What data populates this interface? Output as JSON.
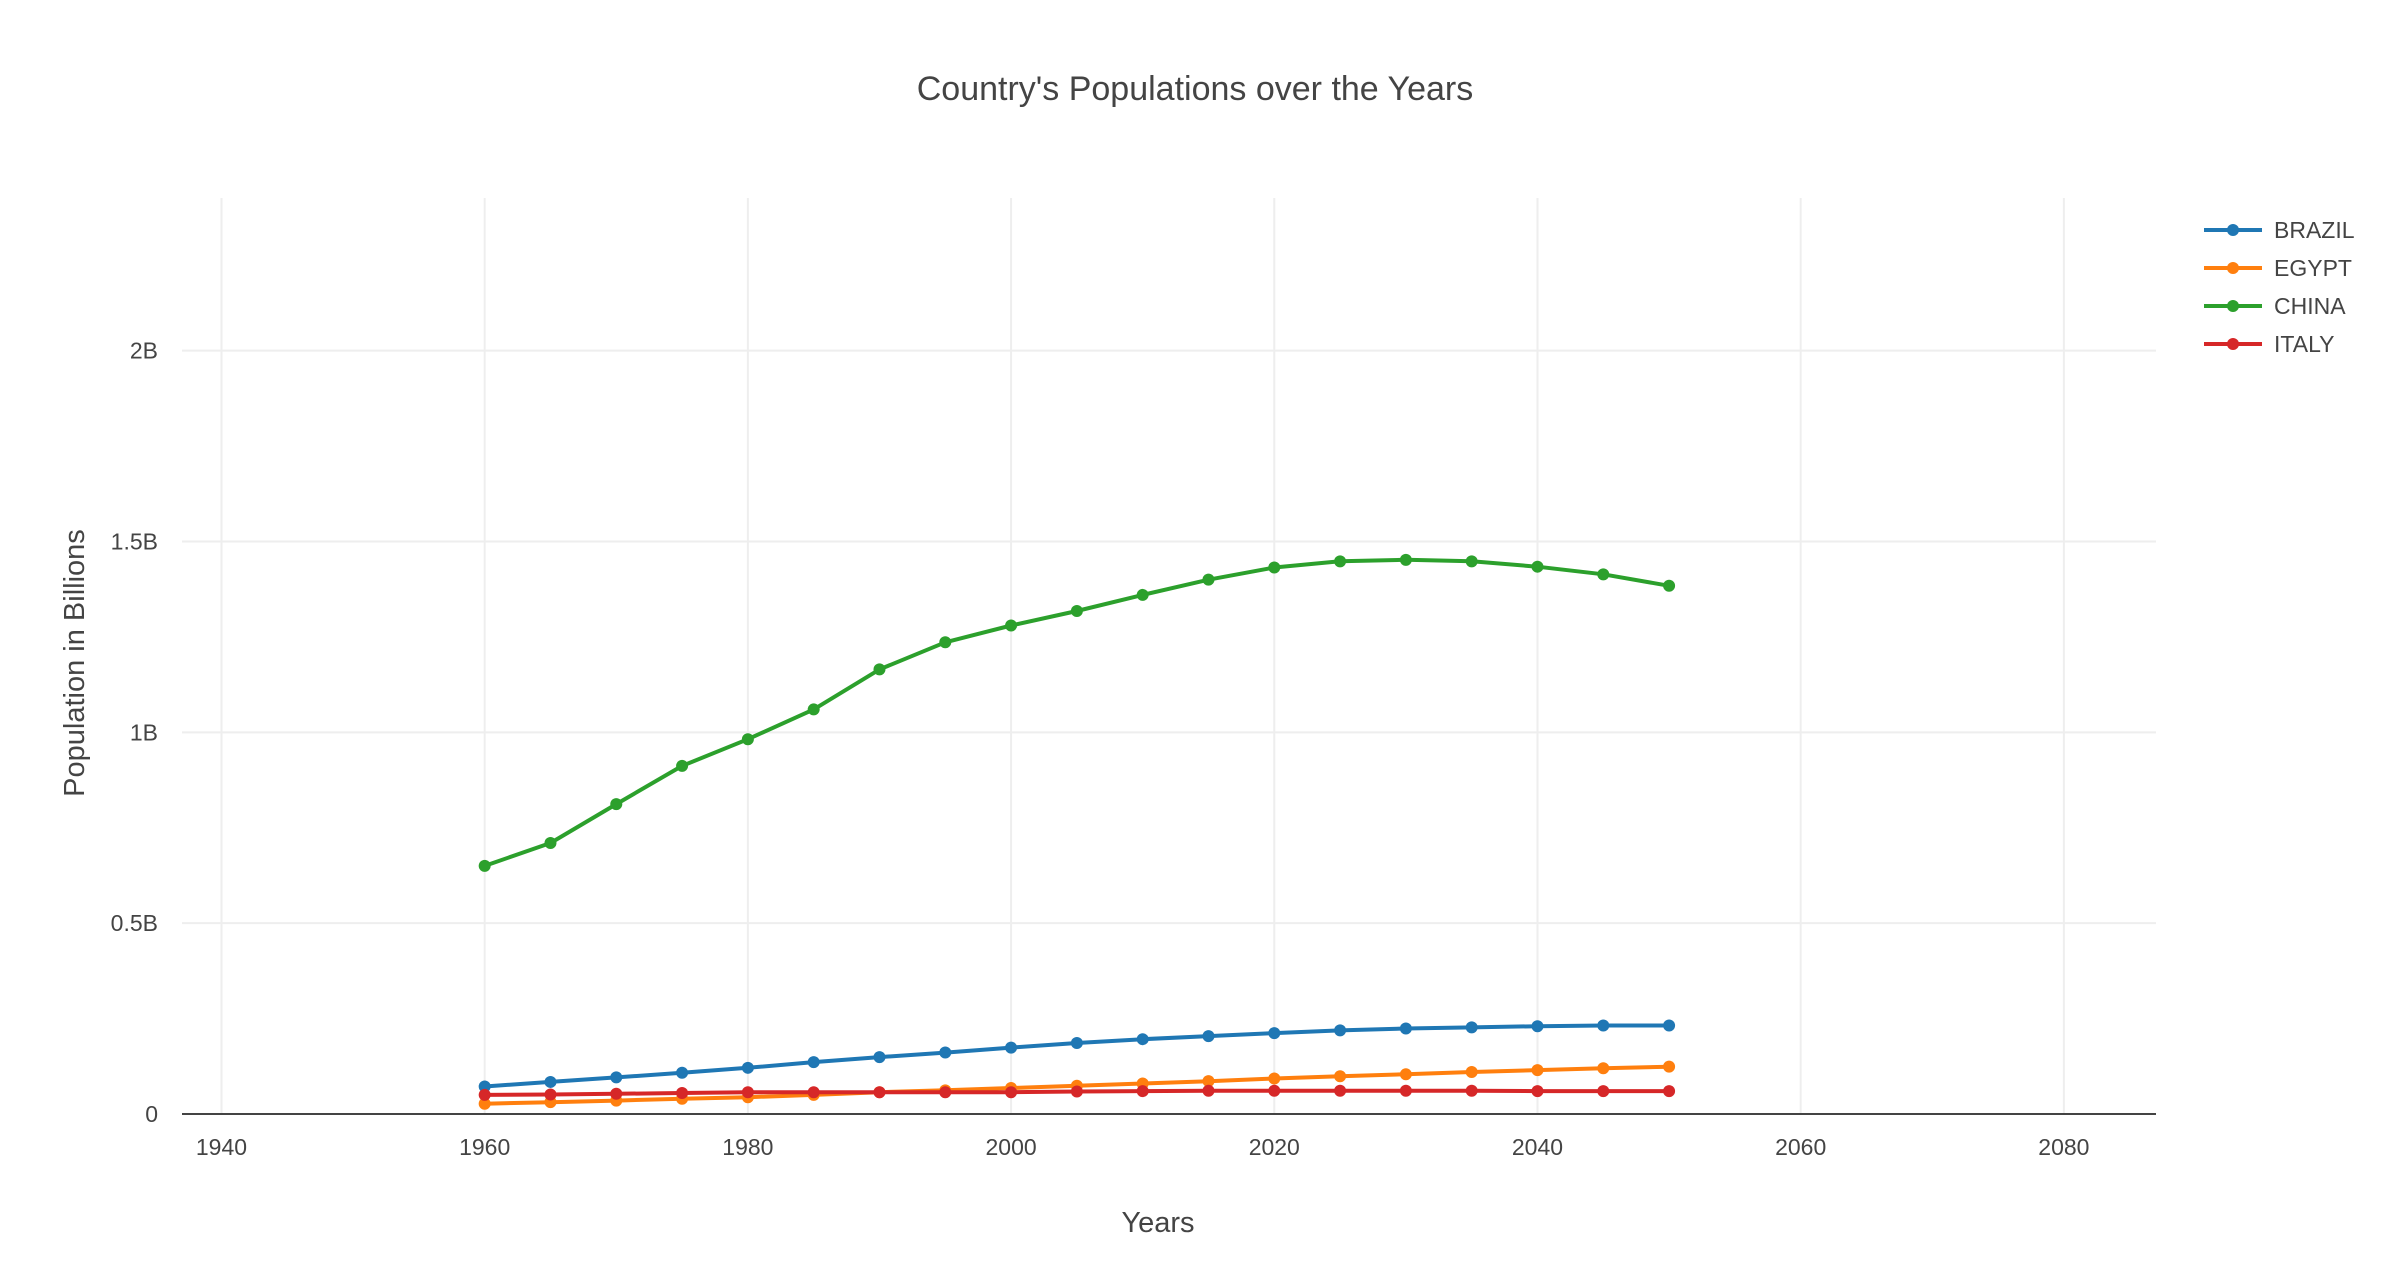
{
  "chart_data": {
    "type": "line",
    "title": "Country's Populations over the Years",
    "xlabel": "Years",
    "ylabel": "Population in Billions",
    "xlim": [
      1937,
      2087
    ],
    "ylim": [
      0,
      2.4
    ],
    "x_ticks": [
      1940,
      1960,
      1980,
      2000,
      2020,
      2040,
      2060,
      2080
    ],
    "x_tick_labels": [
      "1940",
      "1960",
      "1980",
      "2000",
      "2020",
      "2040",
      "2060",
      "2080"
    ],
    "y_ticks": [
      0,
      0.5,
      1,
      1.5,
      2
    ],
    "y_tick_labels": [
      "0",
      "0.5B",
      "1B",
      "1.5B",
      "2B"
    ],
    "grid": true,
    "legend_position": "top-right",
    "x": [
      1960,
      1965,
      1970,
      1975,
      1980,
      1985,
      1990,
      1995,
      2000,
      2005,
      2010,
      2015,
      2020,
      2025,
      2030,
      2035,
      2040,
      2045,
      2050
    ],
    "series": [
      {
        "name": "BRAZIL",
        "color": "#1f77b4",
        "values": [
          0.072,
          0.084,
          0.096,
          0.108,
          0.121,
          0.136,
          0.149,
          0.161,
          0.174,
          0.186,
          0.196,
          0.204,
          0.212,
          0.219,
          0.224,
          0.227,
          0.23,
          0.232,
          0.232
        ]
      },
      {
        "name": "EGYPT",
        "color": "#ff7f0e",
        "values": [
          0.027,
          0.031,
          0.035,
          0.04,
          0.044,
          0.05,
          0.057,
          0.062,
          0.068,
          0.074,
          0.08,
          0.086,
          0.093,
          0.099,
          0.104,
          0.11,
          0.115,
          0.12,
          0.124
        ]
      },
      {
        "name": "CHINA",
        "color": "#2ca02c",
        "values": [
          0.65,
          0.71,
          0.812,
          0.912,
          0.982,
          1.06,
          1.165,
          1.236,
          1.28,
          1.318,
          1.36,
          1.4,
          1.432,
          1.448,
          1.452,
          1.448,
          1.434,
          1.414,
          1.384
        ]
      },
      {
        "name": "ITALY",
        "color": "#d62728",
        "values": [
          0.05,
          0.051,
          0.053,
          0.055,
          0.057,
          0.057,
          0.057,
          0.057,
          0.057,
          0.059,
          0.06,
          0.061,
          0.061,
          0.061,
          0.061,
          0.061,
          0.06,
          0.06,
          0.06
        ]
      }
    ]
  }
}
